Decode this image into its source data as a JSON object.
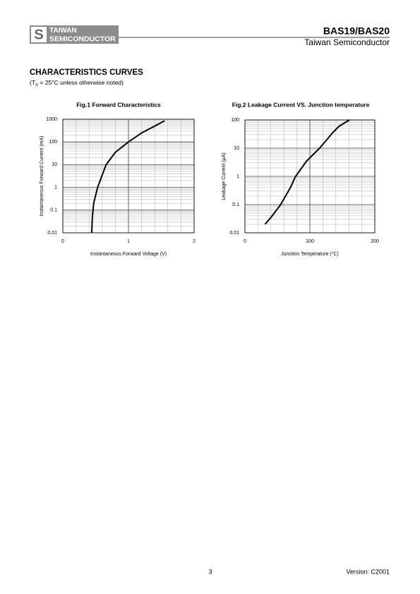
{
  "header": {
    "logo_line1": "TAIWAN",
    "logo_line2": "SEMICONDUCTOR",
    "part": "BAS19/BAS20",
    "company": "Taiwan Semiconductor"
  },
  "section": {
    "title": "CHARACTERISTICS CURVES",
    "note_prefix": "(T",
    "note_sub": "A",
    "note_suffix": " = 25°C unless otherwise noted)"
  },
  "chart_data": [
    {
      "type": "line",
      "title": "Fig.1 Forward Characteristics",
      "x_label": "Instantaneous Forward Voltage (V)",
      "y_label": "Instantaneous Forward Current (mA)",
      "xlim": [
        0,
        2
      ],
      "xticks": [
        0,
        1,
        2
      ],
      "ylim": [
        0.01,
        1000
      ],
      "yticks": [
        0.01,
        0.1,
        1,
        10,
        100,
        1000
      ],
      "y_scale": "log",
      "grid": true,
      "series": [
        {
          "name": "Forward current",
          "color": "#000000",
          "x": [
            0.44,
            0.45,
            0.47,
            0.53,
            0.6,
            0.66,
            0.8,
            1.0,
            1.2,
            1.4,
            1.55
          ],
          "values": [
            0.01,
            0.05,
            0.2,
            1,
            3.5,
            10,
            35,
            100,
            250,
            500,
            850
          ]
        }
      ]
    },
    {
      "type": "line",
      "title": "Fig.2  Leakage Current VS. Junction temperature",
      "x_label": "Junction Temperature (°C)",
      "y_label": "Leakage Current (μA)",
      "xlim": [
        0,
        200
      ],
      "xticks": [
        0,
        100,
        200
      ],
      "ylim": [
        0.01,
        100
      ],
      "yticks": [
        0.01,
        0.1,
        1,
        10,
        100
      ],
      "y_scale": "log",
      "grid": true,
      "series": [
        {
          "name": "Leakage current",
          "color": "#000000",
          "x": [
            31,
            40,
            55,
            70,
            78,
            95,
            115,
            135,
            145,
            161
          ],
          "values": [
            0.02,
            0.035,
            0.1,
            0.4,
            1,
            3.5,
            10,
            35,
            60,
            100
          ]
        }
      ]
    }
  ],
  "footer": {
    "page": "3",
    "version": "Version: C2001"
  }
}
